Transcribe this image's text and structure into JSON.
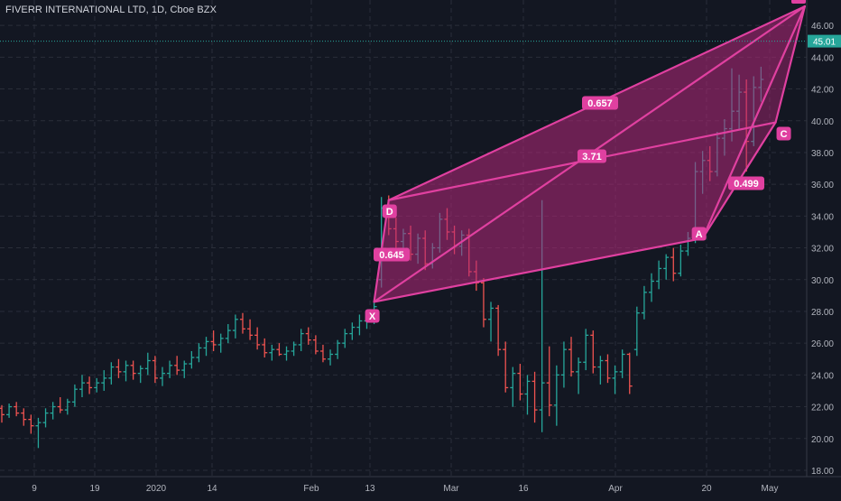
{
  "chart_data": {
    "type": "ohlc",
    "title": "FIVERR INTERNATIONAL LTD, 1D, Cboe BZX",
    "colors": {
      "background": "#131722",
      "grid": "#2a2e39",
      "axis_text": "#b2b5be",
      "up": "#26a69a",
      "down": "#ef5350",
      "pattern": "#e040a0",
      "pattern_fill": "#b4287a",
      "price_line": "#26a69a",
      "last_price_bg": "#26a69a"
    },
    "y_axis": {
      "min": 17.6,
      "max": 47.6,
      "ticks": [
        18,
        20,
        22,
        24,
        26,
        28,
        30,
        32,
        34,
        36,
        38,
        40,
        42,
        44,
        46
      ]
    },
    "x_ticks": [
      "9",
      "19",
      "2020",
      "14",
      "Feb",
      "13",
      "Mar",
      "16",
      "Apr",
      "20",
      "May"
    ],
    "last_price": "45.01",
    "grid": true,
    "bars": [
      [
        21.9,
        22.1,
        21.0,
        21.5
      ],
      [
        21.5,
        22.2,
        21.3,
        22.0
      ],
      [
        22.0,
        22.3,
        21.4,
        21.6
      ],
      [
        21.6,
        21.9,
        20.8,
        21.2
      ],
      [
        21.2,
        21.5,
        20.3,
        20.8
      ],
      [
        20.8,
        21.3,
        19.4,
        21.0
      ],
      [
        21.0,
        21.9,
        20.7,
        21.6
      ],
      [
        21.6,
        22.3,
        21.2,
        22.0
      ],
      [
        22.0,
        22.6,
        21.6,
        21.8
      ],
      [
        21.8,
        22.5,
        21.5,
        22.3
      ],
      [
        22.3,
        23.4,
        22.0,
        23.1
      ],
      [
        23.1,
        24.0,
        22.6,
        23.5
      ],
      [
        23.5,
        23.9,
        22.8,
        23.2
      ],
      [
        23.2,
        23.8,
        22.9,
        23.5
      ],
      [
        23.5,
        24.3,
        23.0,
        23.8
      ],
      [
        23.8,
        24.8,
        23.4,
        24.5
      ],
      [
        24.5,
        25.0,
        23.8,
        24.2
      ],
      [
        24.2,
        24.9,
        23.6,
        24.6
      ],
      [
        24.6,
        24.9,
        23.7,
        24.1
      ],
      [
        24.1,
        24.6,
        23.5,
        24.4
      ],
      [
        24.4,
        25.4,
        24.0,
        24.9
      ],
      [
        24.9,
        25.2,
        23.5,
        23.8
      ],
      [
        23.8,
        24.5,
        23.3,
        24.1
      ],
      [
        24.1,
        24.9,
        23.8,
        24.6
      ],
      [
        24.6,
        25.2,
        24.0,
        24.3
      ],
      [
        24.3,
        24.9,
        23.8,
        24.7
      ],
      [
        24.7,
        25.5,
        24.4,
        25.1
      ],
      [
        25.1,
        26.0,
        24.8,
        25.7
      ],
      [
        25.7,
        26.4,
        25.2,
        26.1
      ],
      [
        26.1,
        26.8,
        25.5,
        25.9
      ],
      [
        25.9,
        26.6,
        25.4,
        26.3
      ],
      [
        26.3,
        27.2,
        26.0,
        26.8
      ],
      [
        26.8,
        27.8,
        26.3,
        27.5
      ],
      [
        27.5,
        27.9,
        26.6,
        26.9
      ],
      [
        26.9,
        27.5,
        26.2,
        26.5
      ],
      [
        26.5,
        27.0,
        25.6,
        25.9
      ],
      [
        25.9,
        26.3,
        25.1,
        25.4
      ],
      [
        25.4,
        25.9,
        24.9,
        25.6
      ],
      [
        25.6,
        26.0,
        25.2,
        25.3
      ],
      [
        25.3,
        25.8,
        24.9,
        25.5
      ],
      [
        25.5,
        26.1,
        25.2,
        25.9
      ],
      [
        25.9,
        26.9,
        25.5,
        26.6
      ],
      [
        26.6,
        27.0,
        25.9,
        26.2
      ],
      [
        26.2,
        26.5,
        25.3,
        25.5
      ],
      [
        25.5,
        25.9,
        24.8,
        25.0
      ],
      [
        25.0,
        25.6,
        24.6,
        25.3
      ],
      [
        25.3,
        26.2,
        25.0,
        26.0
      ],
      [
        26.0,
        26.9,
        25.7,
        26.6
      ],
      [
        26.6,
        27.3,
        26.2,
        27.0
      ],
      [
        27.0,
        27.8,
        26.5,
        27.4
      ],
      [
        27.4,
        28.0,
        26.9,
        27.6
      ],
      [
        27.6,
        28.6,
        27.2,
        28.3
      ],
      [
        30.0,
        35.2,
        29.5,
        34.5
      ],
      [
        34.5,
        35.3,
        32.8,
        33.2
      ],
      [
        33.2,
        33.9,
        31.8,
        32.4
      ],
      [
        32.4,
        33.2,
        31.5,
        32.9
      ],
      [
        32.9,
        33.4,
        31.2,
        31.6
      ],
      [
        31.6,
        32.9,
        31.0,
        32.6
      ],
      [
        32.6,
        33.1,
        30.6,
        31.0
      ],
      [
        31.0,
        32.3,
        30.7,
        32.0
      ],
      [
        32.0,
        34.2,
        31.7,
        33.8
      ],
      [
        33.8,
        34.5,
        32.5,
        33.0
      ],
      [
        33.0,
        33.4,
        31.6,
        32.1
      ],
      [
        32.1,
        33.1,
        31.5,
        32.8
      ],
      [
        32.8,
        33.2,
        30.2,
        30.5
      ],
      [
        30.5,
        31.2,
        29.3,
        29.8
      ],
      [
        29.8,
        30.1,
        27.0,
        27.5
      ],
      [
        27.5,
        28.6,
        26.1,
        28.2
      ],
      [
        28.2,
        28.4,
        25.2,
        25.6
      ],
      [
        25.6,
        26.1,
        22.9,
        23.2
      ],
      [
        23.2,
        24.5,
        22.0,
        24.1
      ],
      [
        24.1,
        24.7,
        22.4,
        22.8
      ],
      [
        22.8,
        24.0,
        21.5,
        23.6
      ],
      [
        23.6,
        24.2,
        21.0,
        21.8
      ],
      [
        21.8,
        35.0,
        20.4,
        23.5
      ],
      [
        23.5,
        25.8,
        21.4,
        22.1
      ],
      [
        22.1,
        24.6,
        20.8,
        24.0
      ],
      [
        24.0,
        26.1,
        23.2,
        25.6
      ],
      [
        25.6,
        26.4,
        23.9,
        24.2
      ],
      [
        24.2,
        25.1,
        22.8,
        24.8
      ],
      [
        24.8,
        26.9,
        24.3,
        26.5
      ],
      [
        26.5,
        26.8,
        24.1,
        24.5
      ],
      [
        24.5,
        25.2,
        23.4,
        24.9
      ],
      [
        24.9,
        25.3,
        23.5,
        23.8
      ],
      [
        23.8,
        24.6,
        22.8,
        24.2
      ],
      [
        24.2,
        25.6,
        23.8,
        25.3
      ],
      [
        25.3,
        25.4,
        22.8,
        23.3
      ],
      [
        25.6,
        28.3,
        25.2,
        27.9
      ],
      [
        27.9,
        29.6,
        27.5,
        29.2
      ],
      [
        29.2,
        30.4,
        28.6,
        29.9
      ],
      [
        29.9,
        31.2,
        29.4,
        30.7
      ],
      [
        30.7,
        31.6,
        30.0,
        31.4
      ],
      [
        31.4,
        32.0,
        29.9,
        30.4
      ],
      [
        30.4,
        32.2,
        30.2,
        31.8
      ],
      [
        31.8,
        33.0,
        31.5,
        32.6
      ],
      [
        32.6,
        37.4,
        32.3,
        36.8
      ],
      [
        36.8,
        38.1,
        35.4,
        37.5
      ],
      [
        37.5,
        38.4,
        36.2,
        36.8
      ],
      [
        36.8,
        39.3,
        36.5,
        38.9
      ],
      [
        38.9,
        40.1,
        37.8,
        39.5
      ],
      [
        39.5,
        43.3,
        38.7,
        40.6
      ],
      [
        40.6,
        42.9,
        39.4,
        41.8
      ],
      [
        41.8,
        42.6,
        36.8,
        38.7
      ],
      [
        38.7,
        42.8,
        38.4,
        42.1
      ],
      [
        42.1,
        43.4,
        41.2,
        42.6
      ]
    ],
    "pattern_points": [
      {
        "name": "X",
        "date_index": 51,
        "value": 28.6
      },
      {
        "name": "D",
        "date_index": 53,
        "value": 35.0
      },
      {
        "name": "A",
        "date_index": 96,
        "value": 32.6
      },
      {
        "name": "C",
        "date_index": 106,
        "value": 39.9
      },
      {
        "name": "",
        "date_index": 110,
        "value": 47.2
      }
    ],
    "ratio_labels": [
      {
        "text": "0.657"
      },
      {
        "text": "3.71"
      },
      {
        "text": "0.645"
      },
      {
        "text": "0.499"
      }
    ]
  }
}
